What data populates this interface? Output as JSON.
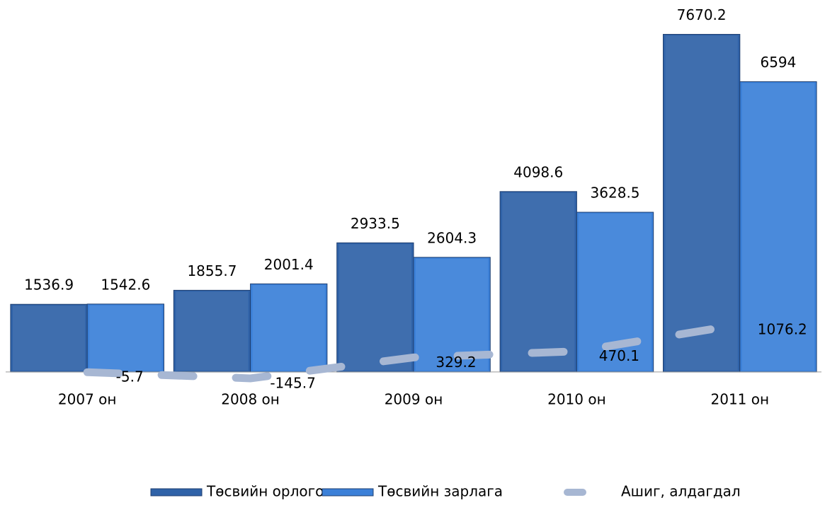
{
  "chart_data": {
    "type": "bar",
    "categories": [
      "2007 он",
      "2008 он",
      "2009 он",
      "2010 он",
      "2011 он"
    ],
    "series": [
      {
        "name": "Төсвийн орлого",
        "color": "#2f62a8",
        "type": "bar",
        "values": [
          1536.9,
          1855.7,
          2933.5,
          4098.6,
          7670.2
        ]
      },
      {
        "name": "Төсвийн зарлага",
        "color": "#3b80d8",
        "type": "bar",
        "values": [
          1542.6,
          2001.4,
          2604.3,
          3628.5,
          6594
        ]
      },
      {
        "name": "Ашиг, алдагдал",
        "color": "#a7b7d3",
        "type": "line",
        "values": [
          -5.7,
          -145.7,
          329.2,
          470.1,
          1076.2
        ]
      }
    ],
    "ylim": [
      -500,
      8000
    ],
    "legend": "bottom"
  }
}
